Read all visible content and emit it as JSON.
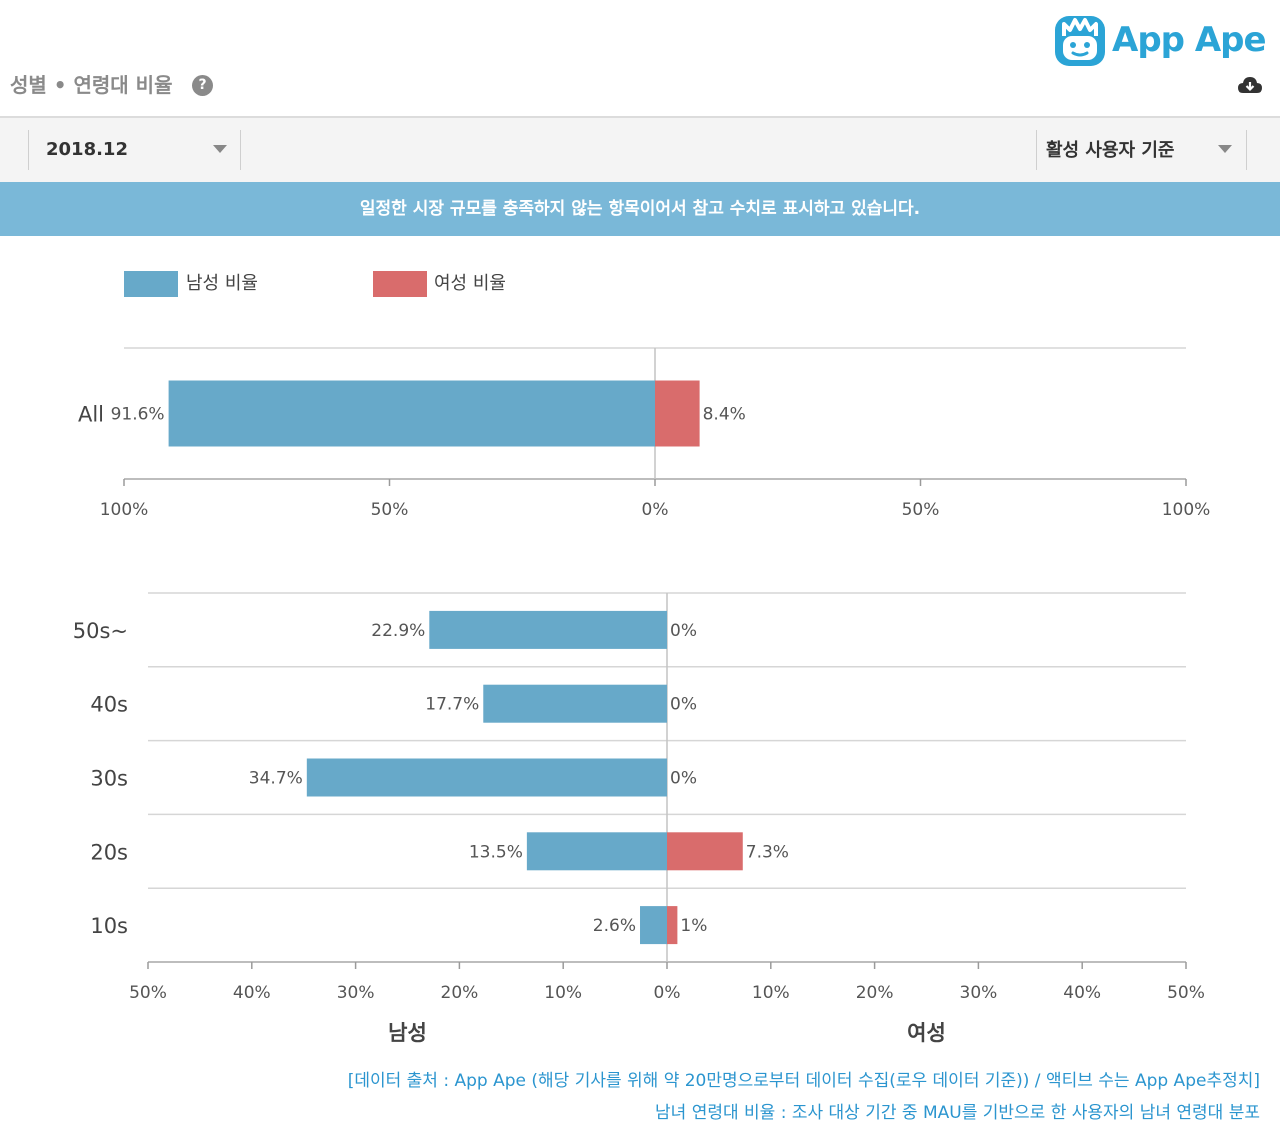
{
  "brand": {
    "name": "App Ape",
    "icon": "ape-logo-icon",
    "color": "#2ba4d6"
  },
  "section": {
    "title": "성별 • 연령대 비율",
    "help_icon": "?"
  },
  "icons": {
    "download": "cloud-download-icon",
    "caret": "caret-down-icon"
  },
  "filters": {
    "date": {
      "value": "2018.12"
    },
    "basis": {
      "value": "활성 사용자 기준"
    }
  },
  "notice": "일정한 시장 규모를 충족하지 않는 항목이어서 참고 수치로 표시하고 있습니다.",
  "legend": [
    {
      "label": "남성 비율",
      "color": "#67a9c9"
    },
    {
      "label": "여성 비율",
      "color": "#d96c6c"
    }
  ],
  "chart_data": [
    {
      "type": "bar",
      "orientation": "horizontal-diverging",
      "categories": [
        "All"
      ],
      "series": [
        {
          "name": "남성 비율",
          "values": [
            91.6
          ],
          "labels": [
            "91.6%"
          ],
          "color": "#67a9c9"
        },
        {
          "name": "여성 비율",
          "values": [
            8.4
          ],
          "labels": [
            "8.4%"
          ],
          "color": "#d96c6c"
        }
      ],
      "xlim": [
        -100,
        100
      ],
      "ticks": [
        -100,
        -50,
        0,
        50,
        100
      ],
      "tick_labels": [
        "100%",
        "50%",
        "0%",
        "50%",
        "100%"
      ]
    },
    {
      "type": "bar",
      "orientation": "horizontal-diverging",
      "categories": [
        "50s~",
        "40s",
        "30s",
        "20s",
        "10s"
      ],
      "series": [
        {
          "name": "남성 비율",
          "values": [
            22.9,
            17.7,
            34.7,
            13.5,
            2.6
          ],
          "labels": [
            "22.9%",
            "17.7%",
            "34.7%",
            "13.5%",
            "2.6%"
          ],
          "color": "#67a9c9"
        },
        {
          "name": "여성 비율",
          "values": [
            0,
            0,
            0,
            7.3,
            1
          ],
          "labels": [
            "0%",
            "0%",
            "0%",
            "7.3%",
            "1%"
          ],
          "color": "#d96c6c"
        }
      ],
      "xlim": [
        -50,
        50
      ],
      "ticks": [
        -50,
        -40,
        -30,
        -20,
        -10,
        0,
        10,
        20,
        30,
        40,
        50
      ],
      "tick_labels": [
        "50%",
        "40%",
        "30%",
        "20%",
        "10%",
        "0%",
        "10%",
        "20%",
        "30%",
        "40%",
        "50%"
      ],
      "xlabel_left": "남성",
      "xlabel_right": "여성"
    }
  ],
  "footnotes": [
    "[데이터 출처 : App Ape (해당 기사를 위해 약 20만명으로부터 데이터 수집(로우 데이터 기준)) / 액티브 수는 App Ape추정치]",
    "남녀 연령대 비율 : 조사 대상 기간 중 MAU를 기반으로 한 사용자의 남녀 연령대 분포"
  ]
}
